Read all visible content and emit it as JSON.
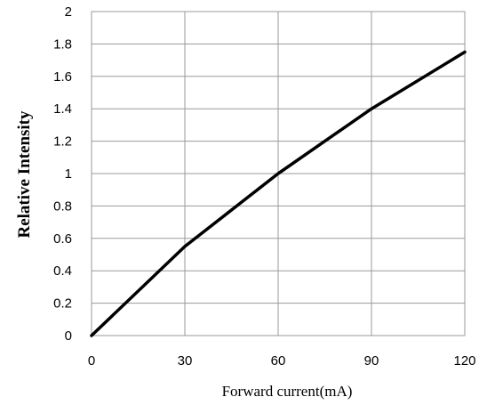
{
  "chart_data": {
    "type": "line",
    "xlabel": "Forward current(mA)",
    "ylabel": "Relative Intensity",
    "xlim": [
      0,
      120
    ],
    "ylim": [
      0,
      2
    ],
    "x_ticks": [
      "0",
      "30",
      "60",
      "90",
      "120"
    ],
    "y_ticks": [
      "0",
      "0.2",
      "0.4",
      "0.6",
      "0.8",
      "1",
      "1.2",
      "1.4",
      "1.6",
      "1.8",
      "2"
    ],
    "grid": true,
    "series": [
      {
        "x": [
          0,
          30,
          60,
          90,
          120
        ],
        "values": [
          0,
          0.55,
          1.0,
          1.4,
          1.75
        ],
        "color": "#000000"
      }
    ]
  }
}
